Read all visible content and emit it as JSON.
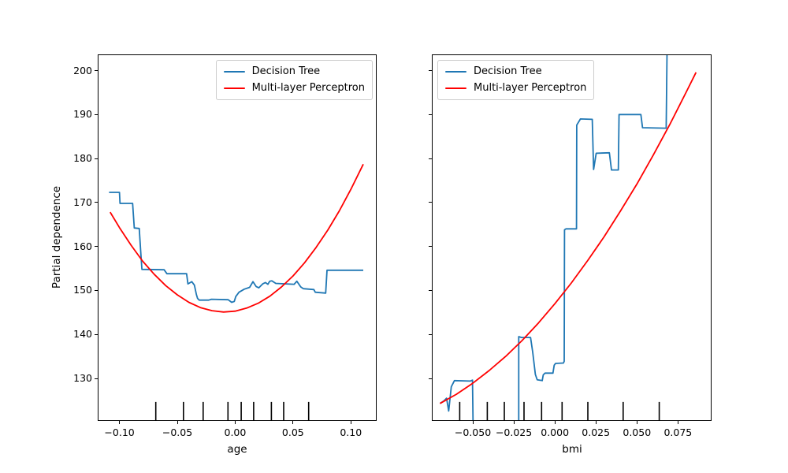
{
  "figure": {
    "background": "#ffffff",
    "ylabel": "Partial dependence",
    "legend": {
      "items": [
        {
          "id": "decision-tree",
          "label": "Decision Tree",
          "color": "#1f77b4"
        },
        {
          "id": "mlp",
          "label": "Multi-layer Perceptron",
          "color": "#ff0000"
        }
      ]
    }
  },
  "chart_data": [
    {
      "type": "line",
      "title": "",
      "xlabel": "age",
      "ylabel": "Partial dependence",
      "xlim": [
        -0.1181,
        0.1216
      ],
      "ylim": [
        120.5,
        203.5
      ],
      "grid": false,
      "legend_loc": "upper right",
      "show_ytick_labels": true,
      "xticks": {
        "values": [
          -0.1,
          -0.05,
          0.0,
          0.05,
          0.1
        ],
        "labels": [
          "−0.10",
          "−0.05",
          "0.00",
          "0.05",
          "0.10"
        ]
      },
      "yticks": {
        "values": [
          130,
          140,
          150,
          160,
          170,
          180,
          190,
          200
        ],
        "labels": [
          "130",
          "140",
          "150",
          "160",
          "170",
          "180",
          "190",
          "200"
        ]
      },
      "deciles_rug": [
        -0.0686,
        -0.0447,
        -0.0277,
        -0.0062,
        0.0052,
        0.016,
        0.0313,
        0.0419,
        0.0635
      ],
      "series": [
        {
          "id": "decision-tree",
          "name": "Decision Tree",
          "color": "#1f77b4",
          "points": [
            [
              -0.109,
              172.3
            ],
            [
              -0.1,
              172.3
            ],
            [
              -0.0995,
              169.8
            ],
            [
              -0.0886,
              169.8
            ],
            [
              -0.0872,
              164.2
            ],
            [
              -0.0829,
              164.1
            ],
            [
              -0.0817,
              159.0
            ],
            [
              -0.0806,
              154.8
            ],
            [
              -0.0614,
              154.7
            ],
            [
              -0.059,
              153.8
            ],
            [
              -0.042,
              153.8
            ],
            [
              -0.0408,
              151.5
            ],
            [
              -0.0375,
              152.0
            ],
            [
              -0.0352,
              151.2
            ],
            [
              -0.0335,
              149.1
            ],
            [
              -0.0325,
              148.2
            ],
            [
              -0.031,
              147.8
            ],
            [
              -0.0228,
              147.8
            ],
            [
              -0.0205,
              148.0
            ],
            [
              -0.006,
              147.9
            ],
            [
              -0.003,
              147.3
            ],
            [
              -0.0008,
              147.5
            ],
            [
              0.0005,
              148.6
            ],
            [
              0.0033,
              149.6
            ],
            [
              0.0079,
              150.3
            ],
            [
              0.0125,
              150.7
            ],
            [
              0.0154,
              152.0
            ],
            [
              0.0181,
              150.9
            ],
            [
              0.0204,
              150.6
            ],
            [
              0.0238,
              151.5
            ],
            [
              0.0261,
              151.8
            ],
            [
              0.0283,
              151.4
            ],
            [
              0.0299,
              152.1
            ],
            [
              0.0317,
              152.2
            ],
            [
              0.0351,
              151.6
            ],
            [
              0.051,
              151.4
            ],
            [
              0.0533,
              152.1
            ],
            [
              0.0567,
              150.8
            ],
            [
              0.059,
              150.4
            ],
            [
              0.068,
              150.2
            ],
            [
              0.0692,
              149.6
            ],
            [
              0.0782,
              149.4
            ],
            [
              0.0794,
              154.6
            ],
            [
              0.1107,
              154.6
            ]
          ]
        },
        {
          "id": "mlp",
          "name": "Multi-layer Perceptron",
          "color": "#ff0000",
          "points": [
            [
              -0.108,
              167.8
            ],
            [
              -0.1,
              164.3
            ],
            [
              -0.09,
              160.3
            ],
            [
              -0.08,
              156.7
            ],
            [
              -0.07,
              153.7
            ],
            [
              -0.06,
              151.1
            ],
            [
              -0.05,
              149.0
            ],
            [
              -0.04,
              147.3
            ],
            [
              -0.03,
              146.1
            ],
            [
              -0.02,
              145.4
            ],
            [
              -0.01,
              145.1
            ],
            [
              0.0,
              145.3
            ],
            [
              0.01,
              146.0
            ],
            [
              0.02,
              147.1
            ],
            [
              0.03,
              148.7
            ],
            [
              0.04,
              150.8
            ],
            [
              0.05,
              153.3
            ],
            [
              0.06,
              156.3
            ],
            [
              0.07,
              159.8
            ],
            [
              0.08,
              163.7
            ],
            [
              0.09,
              168.1
            ],
            [
              0.1,
              173.0
            ],
            [
              0.1107,
              178.7
            ]
          ]
        }
      ]
    },
    {
      "type": "line",
      "title": "",
      "xlabel": "bmi",
      "ylabel": "",
      "xlim": [
        -0.0745,
        0.095
      ],
      "ylim": [
        120.5,
        203.5
      ],
      "grid": false,
      "legend_loc": "upper left",
      "show_ytick_labels": false,
      "xticks": {
        "values": [
          -0.05,
          -0.025,
          0.0,
          0.025,
          0.05,
          0.075
        ],
        "labels": [
          "−0.050",
          "−0.025",
          "0.000",
          "0.025",
          "0.050",
          "0.075"
        ]
      },
      "yticks": {
        "values": [
          130,
          140,
          150,
          160,
          170,
          180,
          190,
          200
        ],
        "labels": [
          "130",
          "140",
          "150",
          "160",
          "170",
          "180",
          "190",
          "200"
        ]
      },
      "deciles_rug": [
        -0.058,
        -0.0412,
        -0.0308,
        -0.0188,
        -0.0081,
        0.0044,
        0.0201,
        0.0416,
        0.0636
      ],
      "series": [
        {
          "id": "decision-tree",
          "name": "Decision Tree",
          "color": "#1f77b4",
          "points": [
            [
              -0.07,
              124.3
            ],
            [
              -0.0676,
              124.9
            ],
            [
              -0.066,
              125.5
            ],
            [
              -0.0647,
              122.6
            ],
            [
              -0.0631,
              128.1
            ],
            [
              -0.0612,
              129.5
            ],
            [
              -0.0516,
              129.4
            ],
            [
              -0.0502,
              129.6
            ],
            [
              -0.0496,
              112.0
            ],
            [
              -0.022,
              112.0
            ],
            [
              -0.022,
              139.5
            ],
            [
              -0.0204,
              139.3
            ],
            [
              -0.0148,
              139.3
            ],
            [
              -0.0135,
              136.0
            ],
            [
              -0.0119,
              130.9
            ],
            [
              -0.0108,
              129.7
            ],
            [
              -0.0077,
              129.5
            ],
            [
              -0.0071,
              130.8
            ],
            [
              -0.006,
              131.2
            ],
            [
              -0.0012,
              131.2
            ],
            [
              -0.0004,
              133.0
            ],
            [
              0.0004,
              133.4
            ],
            [
              0.0052,
              133.5
            ],
            [
              0.0057,
              133.9
            ],
            [
              0.0059,
              163.8
            ],
            [
              0.0068,
              164.0
            ],
            [
              0.0132,
              164.0
            ],
            [
              0.0133,
              187.6
            ],
            [
              0.0156,
              189.0
            ],
            [
              0.0228,
              188.9
            ],
            [
              0.0236,
              177.5
            ],
            [
              0.0252,
              181.2
            ],
            [
              0.0332,
              181.3
            ],
            [
              0.0345,
              177.4
            ],
            [
              0.0387,
              177.4
            ],
            [
              0.0391,
              190.0
            ],
            [
              0.0524,
              190.0
            ],
            [
              0.0534,
              187.0
            ],
            [
              0.0678,
              186.9
            ],
            [
              0.0684,
              206.0
            ]
          ]
        },
        {
          "id": "mlp",
          "name": "Multi-layer Perceptron",
          "color": "#ff0000",
          "points": [
            [
              -0.07,
              124.3
            ],
            [
              -0.06,
              126.4
            ],
            [
              -0.05,
              128.9
            ],
            [
              -0.04,
              131.8
            ],
            [
              -0.03,
              135.0
            ],
            [
              -0.02,
              138.6
            ],
            [
              -0.01,
              142.6
            ],
            [
              0.0,
              147.0
            ],
            [
              0.01,
              151.7
            ],
            [
              0.02,
              156.8
            ],
            [
              0.03,
              162.2
            ],
            [
              0.04,
              168.1
            ],
            [
              0.05,
              174.2
            ],
            [
              0.06,
              180.8
            ],
            [
              0.07,
              187.7
            ],
            [
              0.08,
              195.1
            ],
            [
              0.086,
              199.6
            ]
          ]
        }
      ]
    }
  ]
}
